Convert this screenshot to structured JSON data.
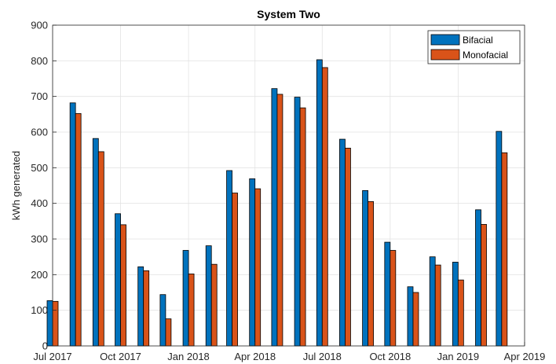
{
  "chart_data": {
    "type": "bar",
    "title": "System Two",
    "xlabel": "",
    "ylabel": "kWh generated",
    "ylim": [
      0,
      900
    ],
    "yticks": [
      0,
      100,
      200,
      300,
      400,
      500,
      600,
      700,
      800,
      900
    ],
    "xlim": [
      "2017-07-01",
      "2019-04-01"
    ],
    "xticks": [
      "2017-07-01",
      "2017-10-01",
      "2018-01-01",
      "2018-04-01",
      "2018-07-01",
      "2018-10-01",
      "2019-01-01",
      "2019-04-01"
    ],
    "xtick_labels": [
      "Jul 2017",
      "Oct 2017",
      "Jan 2018",
      "Apr 2018",
      "Jul 2018",
      "Oct 2018",
      "Jan 2019",
      "Apr 2019"
    ],
    "grid": true,
    "legend_position": "top-right",
    "categories": [
      "2017-07-01",
      "2017-08-01",
      "2017-09-01",
      "2017-10-01",
      "2017-11-01",
      "2017-12-01",
      "2018-01-01",
      "2018-02-01",
      "2018-03-01",
      "2018-04-01",
      "2018-05-01",
      "2018-06-01",
      "2018-07-01",
      "2018-08-01",
      "2018-09-01",
      "2018-10-01",
      "2018-11-01",
      "2018-12-01",
      "2019-01-01",
      "2019-02-01",
      "2019-03-01"
    ],
    "series": [
      {
        "name": "Bifacial",
        "color": "#0072BD",
        "values": [
          127,
          682,
          582,
          371,
          222,
          144,
          268,
          281,
          492,
          469,
          722,
          698,
          803,
          580,
          436,
          291,
          166,
          250,
          235,
          382,
          602
        ]
      },
      {
        "name": "Monofacial",
        "color": "#D95319",
        "values": [
          125,
          652,
          545,
          340,
          211,
          76,
          202,
          229,
          429,
          441,
          706,
          668,
          781,
          555,
          405,
          268,
          150,
          227,
          185,
          341,
          542
        ]
      }
    ]
  }
}
